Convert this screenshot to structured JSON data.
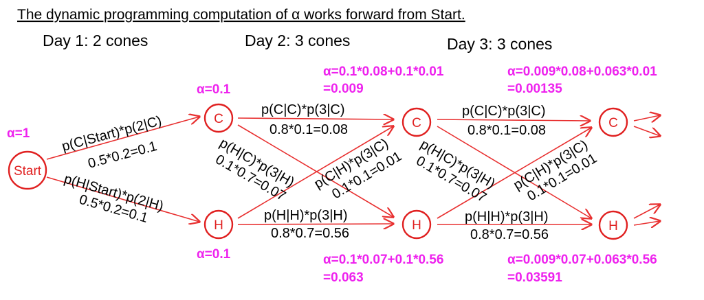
{
  "title": "The dynamic programming computation of α works forward from Start.",
  "days": [
    "Day 1: 2 cones",
    "Day 2: 3 cones",
    "Day 3: 3 cones"
  ],
  "nodes": {
    "start": "Start",
    "c1": "C",
    "h1": "H",
    "c2": "C",
    "h2": "H",
    "c3": "C",
    "h3": "H"
  },
  "alphas": {
    "start": "α=1",
    "c1": "α=0.1",
    "h1": "α=0.1",
    "c2_line1": "α=0.1*0.08+0.1*0.01",
    "c2_line2": "=0.009",
    "h2_line1": "α=0.1*0.07+0.1*0.56",
    "h2_line2": "=0.063",
    "c3_line1": "α=0.009*0.08+0.063*0.01",
    "c3_line2": "=0.00135",
    "h3_line1": "α=0.009*0.07+0.063*0.56",
    "h3_line2": "=0.03591"
  },
  "edges": {
    "start_c_formula": "p(C|Start)*p(2|C)",
    "start_c_value": "0.5*0.2=0.1",
    "start_h_formula": "p(H|Start)*p(2|H)",
    "start_h_value": "0.5*0.2=0.1",
    "cc_formula": "p(C|C)*p(3|C)",
    "cc_value": "0.8*0.1=0.08",
    "hc_formula": "p(H|C)*p(3|H)",
    "hc_value": "0.1*0.7=0.07",
    "ch_formula": "p(C|H)*p(3|C)",
    "ch_value": "0.1*0.1=0.01",
    "hh_formula": "p(H|H)*p(3|H)",
    "hh_value": "0.8*0.7=0.56"
  },
  "colors": {
    "arrow": "#e83030",
    "alpha": "#ee22ee",
    "node": "#e02020"
  }
}
